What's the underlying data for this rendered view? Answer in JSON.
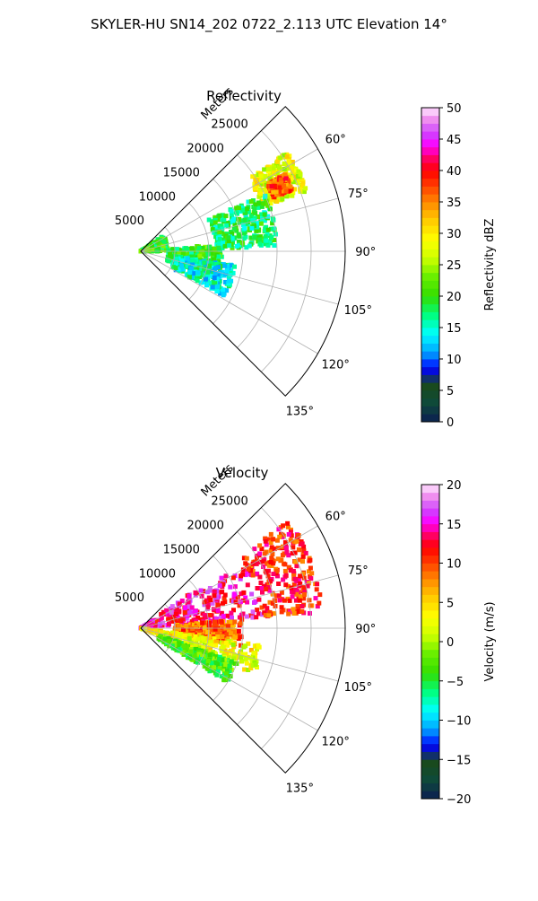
{
  "suptitle": "SKYLER-HU  SN14_202  0722_2.113 UTC Elevation 14°",
  "chart_data": [
    {
      "type": "heatmap",
      "projection": "polar-sector",
      "title": "Reflectivity",
      "radial_label": "Meters",
      "radial_ticks": [
        "5000",
        "10000",
        "15000",
        "20000",
        "25000"
      ],
      "radial_tick_values": [
        5000,
        10000,
        15000,
        20000,
        25000
      ],
      "angular_ticks": [
        "60°",
        "75°",
        "90°",
        "105°",
        "120°",
        "135°"
      ],
      "angular_tick_values": [
        60,
        75,
        90,
        105,
        120,
        135
      ],
      "theta_range": [
        45,
        135
      ],
      "r_range": [
        0,
        30000
      ],
      "grid": true,
      "colorbar": {
        "label": "Reflectivity dBZ",
        "range": [
          0,
          50
        ],
        "ticks": [
          "0",
          "5",
          "10",
          "15",
          "20",
          "25",
          "30",
          "35",
          "40",
          "45",
          "50"
        ],
        "tick_values": [
          0,
          5,
          10,
          15,
          20,
          25,
          30,
          35,
          40,
          45,
          50
        ]
      },
      "field_summary": [
        {
          "r_range": [
            0,
            4000
          ],
          "theta_range": [
            55,
            90
          ],
          "value": 20
        },
        {
          "r_range": [
            4000,
            12000
          ],
          "theta_range": [
            85,
            110
          ],
          "value": 20
        },
        {
          "r_range": [
            5000,
            14000
          ],
          "theta_range": [
            98,
            118
          ],
          "value": 15
        },
        {
          "r_range": [
            19000,
            26000
          ],
          "theta_range": [
            56,
            70
          ],
          "value": 28
        },
        {
          "r_range": [
            21000,
            24000
          ],
          "theta_range": [
            62,
            68
          ],
          "value": 37
        },
        {
          "r_range": [
            11000,
            20000
          ],
          "theta_range": [
            65,
            88
          ],
          "value": 18
        }
      ]
    },
    {
      "type": "heatmap",
      "projection": "polar-sector",
      "title": "Velocity",
      "radial_label": "Meters",
      "radial_ticks": [
        "5000",
        "10000",
        "15000",
        "20000",
        "25000"
      ],
      "radial_tick_values": [
        5000,
        10000,
        15000,
        20000,
        25000
      ],
      "angular_ticks": [
        "60°",
        "75°",
        "90°",
        "105°",
        "120°",
        "135°"
      ],
      "angular_tick_values": [
        60,
        75,
        90,
        105,
        120,
        135
      ],
      "theta_range": [
        45,
        135
      ],
      "r_range": [
        0,
        30000
      ],
      "grid": true,
      "colorbar": {
        "label": "Velocity (m/s)",
        "range": [
          -20,
          20
        ],
        "ticks": [
          "−20",
          "−15",
          "−10",
          "−5",
          "0",
          "5",
          "10",
          "15",
          "20"
        ],
        "tick_values": [
          -20,
          -15,
          -10,
          -5,
          0,
          5,
          10,
          15,
          20
        ]
      },
      "field_summary": [
        {
          "r_range": [
            0,
            18000
          ],
          "theta_range": [
            55,
            85
          ],
          "value": 14
        },
        {
          "r_range": [
            18000,
            27000
          ],
          "theta_range": [
            54,
            85
          ],
          "value": 11
        },
        {
          "r_range": [
            5000,
            15000
          ],
          "theta_range": [
            85,
            100
          ],
          "value": 9
        },
        {
          "r_range": [
            0,
            18000
          ],
          "theta_range": [
            98,
            112
          ],
          "value": 3
        },
        {
          "r_range": [
            3000,
            15000
          ],
          "theta_range": [
            110,
            122
          ],
          "value": -3
        }
      ]
    }
  ],
  "colors": {
    "grid": "#b0b0b0",
    "axis": "#000000"
  }
}
